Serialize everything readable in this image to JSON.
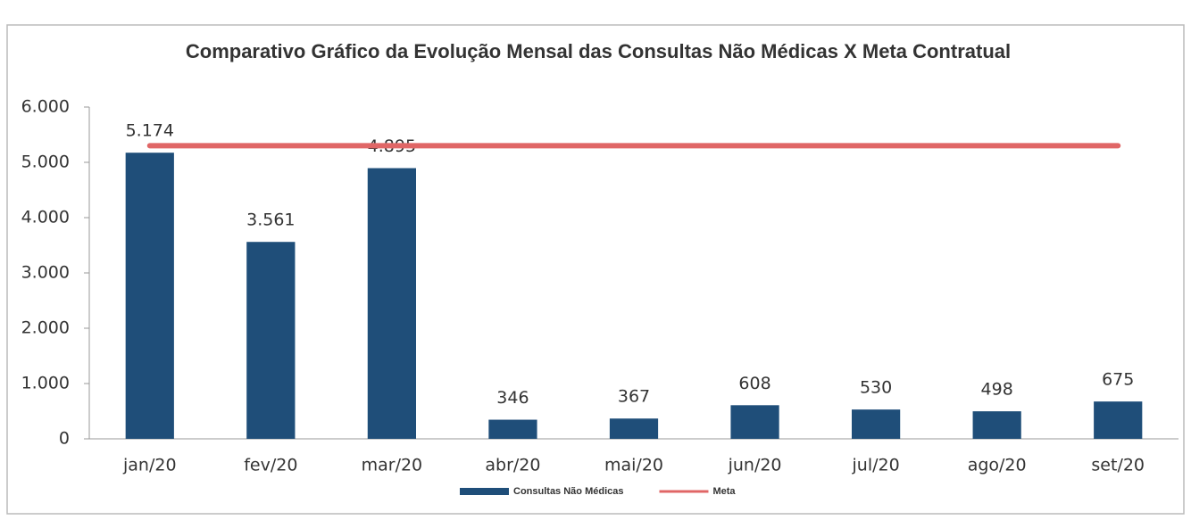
{
  "chart_data": {
    "type": "bar",
    "title": "Comparativo Gráfico da Evolução Mensal das Consultas Não Médicas X Meta Contratual",
    "categories": [
      "jan/20",
      "fev/20",
      "mar/20",
      "abr/20",
      "mai/20",
      "jun/20",
      "jul/20",
      "ago/20",
      "set/20"
    ],
    "series": [
      {
        "name": "Consultas Não Médicas",
        "type": "bar",
        "color": "#1f4e79",
        "values": [
          5174,
          3561,
          4895,
          346,
          367,
          608,
          530,
          498,
          675
        ],
        "value_labels": [
          "5.174",
          "3.561",
          "4.895",
          "346",
          "367",
          "608",
          "530",
          "498",
          "675"
        ]
      },
      {
        "name": "Meta",
        "type": "line",
        "color": "#e06666",
        "values": [
          5300,
          5300,
          5300,
          5300,
          5300,
          5300,
          5300,
          5300,
          5300
        ]
      }
    ],
    "ylim": [
      0,
      6000
    ],
    "yticks": [
      0,
      {
        "value": 1000,
        "label": "1.000"
      },
      {
        "value": 2000,
        "label": "2.000"
      },
      {
        "value": 3000,
        "label": "3.000"
      },
      {
        "value": 4000,
        "label": "4.000"
      },
      {
        "value": 5000,
        "label": "5.000"
      },
      {
        "value": 6000,
        "label": "6.000"
      }
    ],
    "grid": false,
    "legend": "bottom"
  }
}
